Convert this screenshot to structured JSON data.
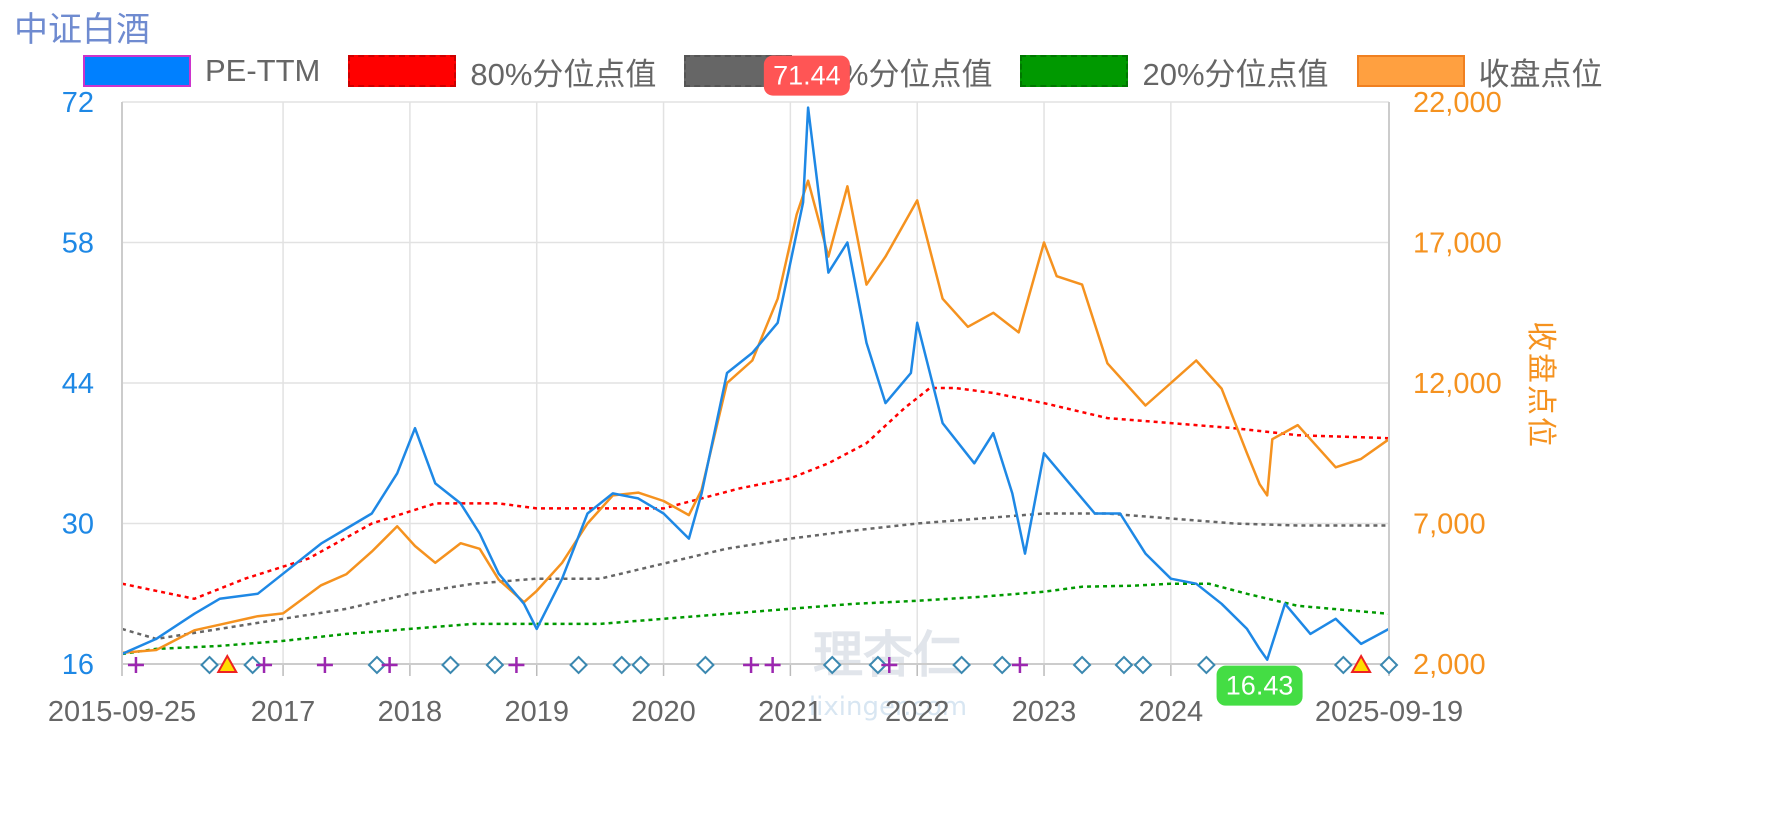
{
  "title": "中证白酒",
  "legend": [
    {
      "label": "PE-TTM",
      "color": "#0080ff",
      "border": "#cc33cc",
      "style": "solid"
    },
    {
      "label": "80%分位点值",
      "color": "#ff0000",
      "border": "#cc0000",
      "style": "dashed"
    },
    {
      "label": "50%分位点值",
      "color": "#666666",
      "border": "#555555",
      "style": "dashed"
    },
    {
      "label": "20%分位点值",
      "color": "#009900",
      "border": "#007700",
      "style": "dashed"
    },
    {
      "label": "收盘点位",
      "color": "#ffa040",
      "border": "#f08020",
      "style": "solid"
    }
  ],
  "watermark": {
    "line1": "理杏仁",
    "line2": "lixinger.com"
  },
  "chart_data": {
    "type": "line",
    "title": "中证白酒",
    "x_range": [
      "2015-09-25",
      "2025-09-19"
    ],
    "x_ticks": [
      "2015-09-25",
      "2017",
      "2018",
      "2019",
      "2020",
      "2021",
      "2022",
      "2023",
      "2024",
      "2025-09-19"
    ],
    "y_left": {
      "label": "",
      "range": [
        16,
        72
      ],
      "ticks": [
        "16",
        "30",
        "44",
        "58",
        "72"
      ],
      "color": "#1e88e5"
    },
    "y_right": {
      "label": "收盘点位",
      "range": [
        2000,
        22000
      ],
      "ticks": [
        "2,000",
        "7,000",
        "12,000",
        "17,000",
        "22,000"
      ],
      "color": "#f5921f"
    },
    "grid": true,
    "legend_position": "top",
    "annotations": [
      {
        "text": "71.44",
        "x": "2021-02-18",
        "y": 71.44,
        "kind": "max",
        "color": "#ff5555"
      },
      {
        "text": "16.43",
        "x": "2024-09-13",
        "y": 16.43,
        "kind": "min",
        "color": "#44dd44"
      }
    ],
    "series": [
      {
        "name": "PE-TTM",
        "axis": "left",
        "color": "#1e88e5",
        "x": [
          2015.73,
          2016.0,
          2016.3,
          2016.5,
          2016.8,
          2017.0,
          2017.3,
          2017.5,
          2017.7,
          2017.9,
          2018.04,
          2018.2,
          2018.4,
          2018.55,
          2018.7,
          2018.9,
          2019.0,
          2019.2,
          2019.4,
          2019.6,
          2019.8,
          2020.0,
          2020.2,
          2020.3,
          2020.5,
          2020.7,
          2020.9,
          2021.1,
          2021.14,
          2021.3,
          2021.45,
          2021.6,
          2021.75,
          2021.95,
          2022.0,
          2022.2,
          2022.45,
          2022.6,
          2022.75,
          2022.85,
          2023.0,
          2023.2,
          2023.4,
          2023.6,
          2023.8,
          2024.0,
          2024.2,
          2024.4,
          2024.6,
          2024.7,
          2024.76,
          2024.9,
          2025.1,
          2025.3,
          2025.5,
          2025.72
        ],
        "values": [
          17,
          18.5,
          21,
          22.5,
          23,
          25,
          28,
          29.5,
          31,
          35,
          39.5,
          34,
          32,
          29,
          25,
          22,
          19.5,
          24.5,
          31,
          33,
          32.5,
          31,
          28.5,
          33,
          45,
          47,
          50,
          62,
          71.44,
          55,
          58,
          48,
          42,
          45,
          50,
          40,
          36,
          39,
          33,
          27,
          37,
          34,
          31,
          31,
          27,
          24.5,
          24,
          22,
          19.5,
          17.5,
          16.43,
          22,
          19,
          20.5,
          18,
          19.5
        ]
      },
      {
        "name": "收盘点位",
        "axis": "right",
        "color": "#f5921f",
        "x": [
          2015.73,
          2016.0,
          2016.3,
          2016.5,
          2016.8,
          2017.0,
          2017.3,
          2017.5,
          2017.7,
          2017.9,
          2018.04,
          2018.2,
          2018.4,
          2018.55,
          2018.7,
          2018.9,
          2019.0,
          2019.2,
          2019.4,
          2019.6,
          2019.8,
          2020.0,
          2020.2,
          2020.3,
          2020.5,
          2020.7,
          2020.9,
          2021.05,
          2021.14,
          2021.3,
          2021.45,
          2021.6,
          2021.75,
          2022.0,
          2022.2,
          2022.4,
          2022.6,
          2022.8,
          2023.0,
          2023.1,
          2023.3,
          2023.5,
          2023.8,
          2024.0,
          2024.2,
          2024.4,
          2024.6,
          2024.7,
          2024.76,
          2024.8,
          2025.0,
          2025.3,
          2025.5,
          2025.72
        ],
        "values": [
          2400,
          2500,
          3200,
          3400,
          3700,
          3800,
          4800,
          5200,
          6000,
          6900,
          6200,
          5600,
          6300,
          6100,
          5000,
          4200,
          4600,
          5600,
          7000,
          8000,
          8100,
          7800,
          7300,
          8200,
          12000,
          12800,
          15000,
          18000,
          19200,
          16500,
          19000,
          15500,
          16500,
          18500,
          15000,
          14000,
          14500,
          13800,
          17000,
          15800,
          15500,
          12700,
          11200,
          12000,
          12800,
          11800,
          9500,
          8400,
          8000,
          10000,
          10500,
          9000,
          9300,
          10000
        ]
      },
      {
        "name": "80%分位点值",
        "axis": "left",
        "color": "#ff0000",
        "x": [
          2015.73,
          2016.3,
          2016.7,
          2017.2,
          2017.7,
          2018.2,
          2018.7,
          2019.0,
          2019.5,
          2020.0,
          2020.3,
          2020.6,
          2021.0,
          2021.3,
          2021.6,
          2021.9,
          2022.1,
          2022.3,
          2022.6,
          2023.0,
          2023.5,
          2024.0,
          2024.5,
          2025.0,
          2025.72
        ],
        "values": [
          24,
          22.5,
          24.5,
          26.5,
          30,
          32,
          32,
          31.5,
          31.5,
          31.5,
          32.5,
          33.5,
          34.5,
          36,
          38,
          41.5,
          43.5,
          43.5,
          43,
          42,
          40.5,
          40,
          39.5,
          38.8,
          38.5
        ]
      },
      {
        "name": "50%分位点值",
        "axis": "left",
        "color": "#666666",
        "x": [
          2015.73,
          2016.0,
          2016.5,
          2017.0,
          2017.5,
          2018.0,
          2018.5,
          2019.0,
          2019.5,
          2020.0,
          2020.5,
          2021.0,
          2021.5,
          2022.0,
          2022.5,
          2023.0,
          2023.5,
          2024.0,
          2024.5,
          2025.0,
          2025.72
        ],
        "values": [
          19.5,
          18.5,
          19.5,
          20.5,
          21.5,
          23,
          24,
          24.5,
          24.5,
          26,
          27.5,
          28.5,
          29.3,
          30,
          30.5,
          31,
          31,
          30.5,
          30,
          29.8,
          29.8
        ]
      },
      {
        "name": "20%分位点值",
        "axis": "left",
        "color": "#009900",
        "x": [
          2015.73,
          2016.0,
          2016.5,
          2017.0,
          2017.5,
          2018.0,
          2018.5,
          2019.0,
          2019.5,
          2020.0,
          2020.5,
          2021.0,
          2021.5,
          2022.0,
          2022.5,
          2023.0,
          2023.3,
          2023.7,
          2024.0,
          2024.3,
          2024.6,
          2025.0,
          2025.72
        ],
        "values": [
          17,
          17.5,
          17.8,
          18.3,
          19,
          19.5,
          20,
          20,
          20,
          20.5,
          21,
          21.5,
          22,
          22.3,
          22.7,
          23.2,
          23.7,
          23.8,
          24,
          24,
          23,
          21.8,
          21
        ]
      }
    ],
    "markers": {
      "plus": {
        "color": "#9c27b0",
        "x": [
          2015.84,
          2016.85,
          2017.33,
          2017.84,
          2018.84,
          2020.69,
          2020.86,
          2021.78,
          2022.81
        ]
      },
      "diamond": {
        "color": "#3b88b0",
        "x": [
          2016.42,
          2016.76,
          2017.74,
          2018.32,
          2018.67,
          2019.33,
          2019.67,
          2019.82,
          2020.33,
          2021.33,
          2021.69,
          2022.35,
          2022.67,
          2023.3,
          2023.63,
          2023.78,
          2024.28,
          2025.36,
          2025.72
        ]
      },
      "triangle": {
        "color": "#ffdd00",
        "x": [
          2016.56,
          2025.5
        ]
      }
    }
  }
}
